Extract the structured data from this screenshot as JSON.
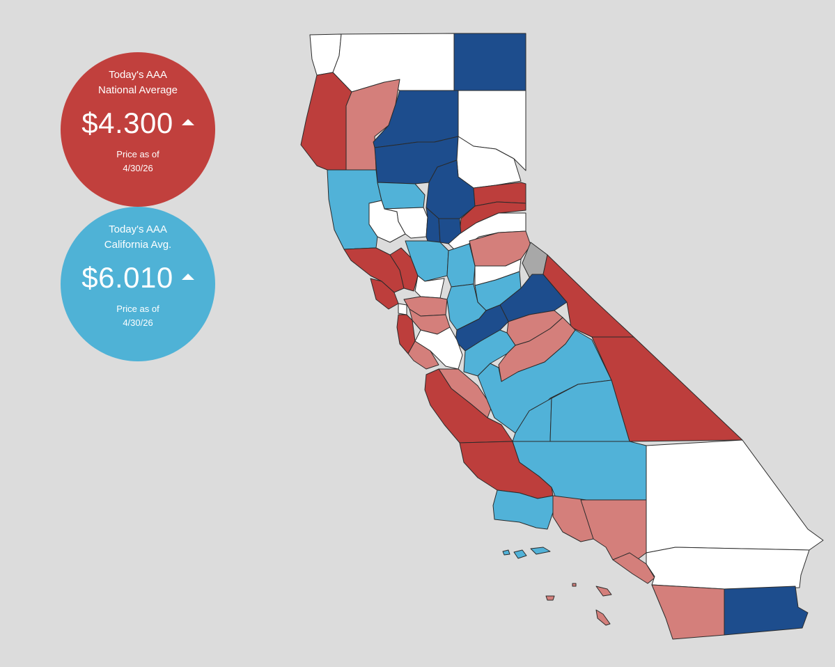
{
  "national": {
    "title_line1": "Today's AAA",
    "title_line2": "National Average",
    "price": "$4.300",
    "trend_icon": "up-triangle-icon",
    "as_of_label": "Price as of",
    "date": "4/30/26",
    "color": "#c1403d"
  },
  "state": {
    "title_line1": "Today's AAA",
    "title_line2": "California Avg.",
    "price": "$6.010",
    "trend_icon": "up-triangle-icon",
    "as_of_label": "Price as of",
    "date": "4/30/26",
    "color": "#4fb2d6"
  },
  "map": {
    "region": "California counties",
    "colors": {
      "white": "#ffffff",
      "dark_blue": "#1d4d8d",
      "light_blue": "#51b2d8",
      "red": "#bd3e3c",
      "pink": "#d47f7b",
      "gray": "#a8a8a8",
      "background": "#dcdcdc"
    }
  }
}
